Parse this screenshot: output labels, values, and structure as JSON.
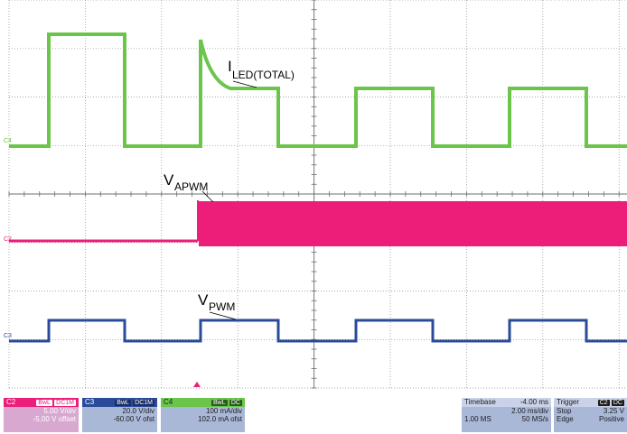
{
  "colors": {
    "c4": "#6ac54a",
    "c2": "#ec1e79",
    "c3": "#2a4b9a",
    "grid": "#8c8c8c",
    "trigger_marker": "#ec1e79"
  },
  "trace_labels": {
    "iled_main": "I",
    "iled_sub": "LED(TOTAL)",
    "vapwm_main": "V",
    "vapwm_sub": "APWM",
    "vpwm_main": "V",
    "vpwm_sub": "PWM"
  },
  "channel_markers": {
    "c4": "C4",
    "c2": "C2",
    "c3": "C3"
  },
  "channels": [
    {
      "id": "C2",
      "badge1": "BwL",
      "badge2": "DC1M",
      "scale": "5.00 V/div",
      "offset": "-5.00 V offset",
      "header_bg": "#ec1e79",
      "body_bg": "#d9a8d0",
      "text_color": "#ffffff"
    },
    {
      "id": "C3",
      "badge1": "BwL",
      "badge2": "DC1M",
      "scale": "20.0 V/div",
      "offset": "-60.00 V ofst",
      "header_bg": "#2a4b9a",
      "body_bg": "#aab8d8",
      "text_color": "#1c1c1c"
    },
    {
      "id": "C4",
      "badge1": "BwL",
      "badge2": "DC",
      "scale": "100 mA/div",
      "offset": "102.0 mA ofst",
      "header_bg": "#6ac54a",
      "body_bg": "#aab8d8",
      "text_color": "#1c1c1c"
    }
  ],
  "timebase": {
    "label": "Timebase",
    "delay": "-4.00 ms",
    "scale": "2.00 ms/div",
    "samples": "1.00 MS",
    "rate": "50 MS/s"
  },
  "trigger": {
    "label": "Trigger",
    "channel": "C2",
    "coupling": "DC",
    "mode": "Stop",
    "level": "3.25 V",
    "type": "Edge",
    "slope": "Positive"
  }
}
